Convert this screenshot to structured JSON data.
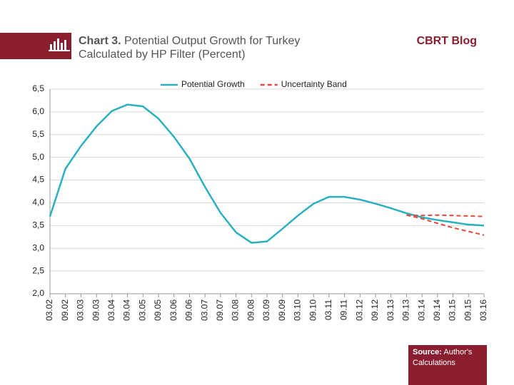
{
  "header": {
    "title_bold": "Chart 3.",
    "title_line1": "Potential Output Growth for Turkey",
    "title_line2": "Calculated by HP Filter (Percent)",
    "brand": "CBRT Blog"
  },
  "footer": {
    "source_label": "Source:",
    "source_text": "Author's Calculations"
  },
  "chart_data": {
    "type": "line",
    "categories": [
      "03.02",
      "09.02",
      "03.03",
      "09.03",
      "03.04",
      "09.04",
      "03.05",
      "09.05",
      "03.06",
      "09.06",
      "03.07",
      "09.07",
      "03.08",
      "09.08",
      "03.09",
      "09.09",
      "03.10",
      "09.10",
      "03.11",
      "09.11",
      "03.12",
      "09.12",
      "03.13",
      "09.13",
      "03.14",
      "09.14",
      "03.15",
      "09.15",
      "03.16"
    ],
    "series": [
      {
        "name": "Potential Growth",
        "color": "#2bb0bf",
        "style": "solid",
        "values": [
          3.7,
          4.75,
          5.25,
          5.68,
          6.02,
          6.16,
          6.12,
          5.85,
          5.45,
          4.97,
          4.35,
          3.78,
          3.35,
          3.12,
          3.15,
          3.43,
          3.72,
          3.98,
          4.13,
          4.13,
          4.07,
          3.98,
          3.88,
          3.77,
          3.68,
          3.62,
          3.57,
          3.52,
          3.5
        ]
      },
      {
        "name": "Uncertainty Band",
        "color": "#e8473a",
        "style": "dashed",
        "upper": [
          null,
          null,
          null,
          null,
          null,
          null,
          null,
          null,
          null,
          null,
          null,
          null,
          null,
          null,
          null,
          null,
          null,
          null,
          null,
          null,
          null,
          null,
          null,
          3.73,
          3.72,
          3.73,
          3.72,
          3.71,
          3.7
        ],
        "lower": [
          null,
          null,
          null,
          null,
          null,
          null,
          null,
          null,
          null,
          null,
          null,
          null,
          null,
          null,
          null,
          null,
          null,
          null,
          null,
          null,
          null,
          null,
          null,
          3.73,
          3.65,
          3.55,
          3.45,
          3.37,
          3.29
        ]
      }
    ],
    "ylim": [
      2,
      6.5
    ],
    "yticks": [
      {
        "value": 2,
        "label": "2,0"
      },
      {
        "value": 2.5,
        "label": "2,5"
      },
      {
        "value": 3,
        "label": "3,0"
      },
      {
        "value": 3.5,
        "label": "3,5"
      },
      {
        "value": 4,
        "label": "4,0"
      },
      {
        "value": 4.5,
        "label": "4,5"
      },
      {
        "value": 5,
        "label": "5,0"
      },
      {
        "value": 5.5,
        "label": "5,5"
      },
      {
        "value": 6,
        "label": "6,0"
      },
      {
        "value": 6.5,
        "label": "6,5"
      }
    ],
    "grid": true,
    "legend": "top"
  }
}
